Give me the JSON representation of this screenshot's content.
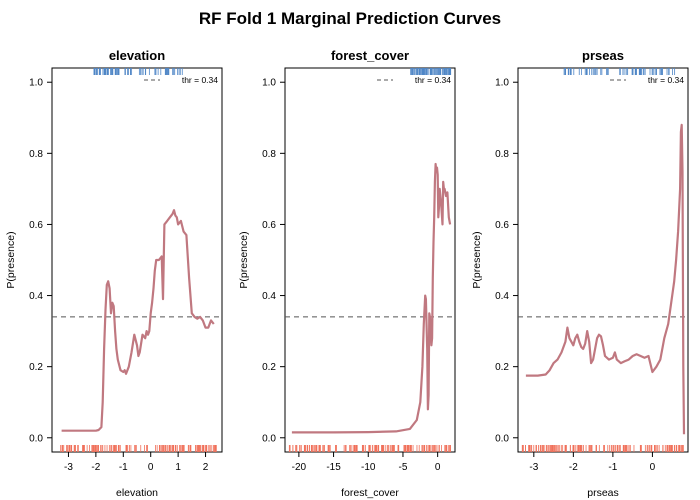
{
  "title": "RF Fold 1 Marginal Prediction Curves",
  "colors": {
    "curve": "#c07880",
    "threshold": "#555555",
    "presence_rug": "#4f86c6",
    "absence_rug": "#f0705a"
  },
  "chart_data": [
    {
      "type": "line",
      "title": "elevation",
      "xlabel": "elevation",
      "ylabel": "P(presence)",
      "xlim": [
        -3.6,
        2.6
      ],
      "ylim": [
        -0.04,
        1.04
      ],
      "xticks": [
        -3,
        -2,
        -1,
        0,
        1,
        2
      ],
      "yticks": [
        0.0,
        0.2,
        0.4,
        0.6,
        0.8,
        1.0
      ],
      "threshold": 0.34,
      "legend": "thr = 0.34",
      "legend_position": "top-right",
      "grid": false,
      "x": [
        -3.25,
        -2.5,
        -2.0,
        -1.9,
        -1.8,
        -1.75,
        -1.7,
        -1.65,
        -1.6,
        -1.55,
        -1.5,
        -1.45,
        -1.4,
        -1.35,
        -1.3,
        -1.25,
        -1.2,
        -1.1,
        -1.0,
        -0.95,
        -0.9,
        -0.8,
        -0.7,
        -0.6,
        -0.5,
        -0.45,
        -0.4,
        -0.3,
        -0.2,
        -0.15,
        -0.1,
        -0.05,
        0.0,
        0.05,
        0.1,
        0.15,
        0.2,
        0.3,
        0.4,
        0.45,
        0.5,
        0.6,
        0.7,
        0.8,
        0.85,
        0.9,
        0.95,
        1.0,
        1.1,
        1.2,
        1.3,
        1.4,
        1.5,
        1.6,
        1.7,
        1.8,
        1.9,
        2.0,
        2.1,
        2.2,
        2.3
      ],
      "y": [
        0.02,
        0.02,
        0.02,
        0.022,
        0.03,
        0.1,
        0.25,
        0.36,
        0.43,
        0.44,
        0.42,
        0.35,
        0.38,
        0.37,
        0.3,
        0.25,
        0.22,
        0.19,
        0.185,
        0.19,
        0.18,
        0.2,
        0.24,
        0.29,
        0.26,
        0.23,
        0.24,
        0.29,
        0.28,
        0.3,
        0.29,
        0.3,
        0.35,
        0.38,
        0.42,
        0.47,
        0.5,
        0.5,
        0.51,
        0.39,
        0.6,
        0.61,
        0.62,
        0.63,
        0.64,
        0.625,
        0.62,
        0.6,
        0.61,
        0.58,
        0.57,
        0.45,
        0.35,
        0.34,
        0.335,
        0.34,
        0.33,
        0.31,
        0.31,
        0.33,
        0.32
      ]
    },
    {
      "type": "line",
      "title": "forest_cover",
      "xlabel": "forest_cover",
      "ylabel": "P(presence)",
      "xlim": [
        -22,
        2.5
      ],
      "ylim": [
        -0.04,
        1.04
      ],
      "xticks": [
        -20,
        -15,
        -10,
        -5,
        0
      ],
      "yticks": [
        0.0,
        0.2,
        0.4,
        0.6,
        0.8,
        1.0
      ],
      "threshold": 0.34,
      "legend": "thr = 0.34",
      "legend_position": "top-right",
      "grid": false,
      "x": [
        -21,
        -15,
        -10,
        -6,
        -4,
        -3,
        -2.5,
        -2.2,
        -2,
        -1.8,
        -1.7,
        -1.5,
        -1.4,
        -1.3,
        -1.2,
        -1.1,
        -1.0,
        -0.9,
        -0.8,
        -0.7,
        -0.6,
        -0.5,
        -0.4,
        -0.3,
        -0.2,
        -0.1,
        0.0,
        0.1,
        0.2,
        0.3,
        0.5,
        0.7,
        0.8,
        0.9,
        1.0,
        1.2,
        1.4,
        1.6,
        1.8
      ],
      "y": [
        0.015,
        0.015,
        0.016,
        0.018,
        0.025,
        0.05,
        0.1,
        0.2,
        0.32,
        0.4,
        0.39,
        0.25,
        0.08,
        0.12,
        0.35,
        0.34,
        0.3,
        0.26,
        0.28,
        0.45,
        0.55,
        0.62,
        0.72,
        0.77,
        0.75,
        0.76,
        0.74,
        0.62,
        0.65,
        0.7,
        0.66,
        0.6,
        0.72,
        0.7,
        0.7,
        0.68,
        0.69,
        0.62,
        0.6
      ]
    },
    {
      "type": "line",
      "title": "prseas",
      "xlabel": "prseas",
      "ylabel": "P(presence)",
      "xlim": [
        -3.4,
        0.9
      ],
      "ylim": [
        -0.04,
        1.04
      ],
      "xticks": [
        -3,
        -2,
        -1,
        0
      ],
      "yticks": [
        0.0,
        0.2,
        0.4,
        0.6,
        0.8,
        1.0
      ],
      "threshold": 0.34,
      "legend": "thr = 0.34",
      "legend_position": "top-right",
      "grid": false,
      "x": [
        -3.2,
        -2.9,
        -2.7,
        -2.6,
        -2.5,
        -2.4,
        -2.3,
        -2.2,
        -2.15,
        -2.1,
        -2.05,
        -2.0,
        -1.95,
        -1.9,
        -1.85,
        -1.8,
        -1.75,
        -1.7,
        -1.65,
        -1.6,
        -1.55,
        -1.5,
        -1.45,
        -1.4,
        -1.35,
        -1.3,
        -1.25,
        -1.2,
        -1.1,
        -1.0,
        -0.95,
        -0.9,
        -0.8,
        -0.7,
        -0.6,
        -0.5,
        -0.4,
        -0.3,
        -0.2,
        -0.1,
        0.0,
        0.1,
        0.2,
        0.3,
        0.4,
        0.45,
        0.5,
        0.55,
        0.6,
        0.65,
        0.7,
        0.72,
        0.74,
        0.76,
        0.78,
        0.8
      ],
      "y": [
        0.175,
        0.175,
        0.178,
        0.19,
        0.21,
        0.22,
        0.24,
        0.27,
        0.31,
        0.28,
        0.27,
        0.26,
        0.28,
        0.29,
        0.27,
        0.255,
        0.25,
        0.265,
        0.3,
        0.27,
        0.21,
        0.22,
        0.25,
        0.28,
        0.29,
        0.285,
        0.26,
        0.23,
        0.22,
        0.225,
        0.24,
        0.22,
        0.21,
        0.215,
        0.22,
        0.23,
        0.235,
        0.23,
        0.225,
        0.23,
        0.185,
        0.2,
        0.22,
        0.28,
        0.32,
        0.36,
        0.4,
        0.44,
        0.5,
        0.58,
        0.7,
        0.86,
        0.88,
        0.75,
        0.2,
        0.01
      ]
    }
  ]
}
